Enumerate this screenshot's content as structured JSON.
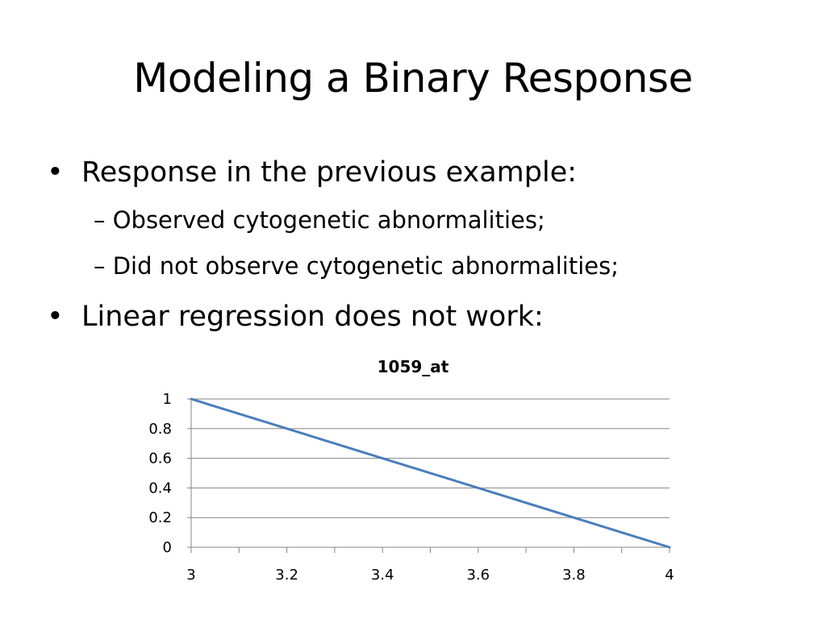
{
  "slide": {
    "title": "Modeling a Binary Response",
    "bullets": [
      {
        "text": "Response in the previous example:",
        "subbullets": [
          "– Observed cytogenetic abnormalities;",
          "– Did not observe cytogenetic abnormalities;"
        ]
      },
      {
        "text": "Linear regression does not work:",
        "subbullets": []
      }
    ],
    "bullet_glyph": "•"
  },
  "chart_data": {
    "type": "line",
    "title": "1059_at",
    "xlabel": "",
    "ylabel": "",
    "x": [
      3,
      4
    ],
    "series": [
      {
        "values": [
          1,
          0
        ],
        "color": "#4a7ebb"
      }
    ],
    "x_ticks": [
      "3",
      "3.2",
      "3.4",
      "3.6",
      "3.8",
      "4"
    ],
    "y_ticks": [
      "0",
      "0.2",
      "0.4",
      "0.6",
      "0.8",
      "1"
    ],
    "xlim": [
      3,
      4
    ],
    "ylim": [
      0,
      1
    ],
    "grid": "horizontal",
    "legend": "none"
  }
}
